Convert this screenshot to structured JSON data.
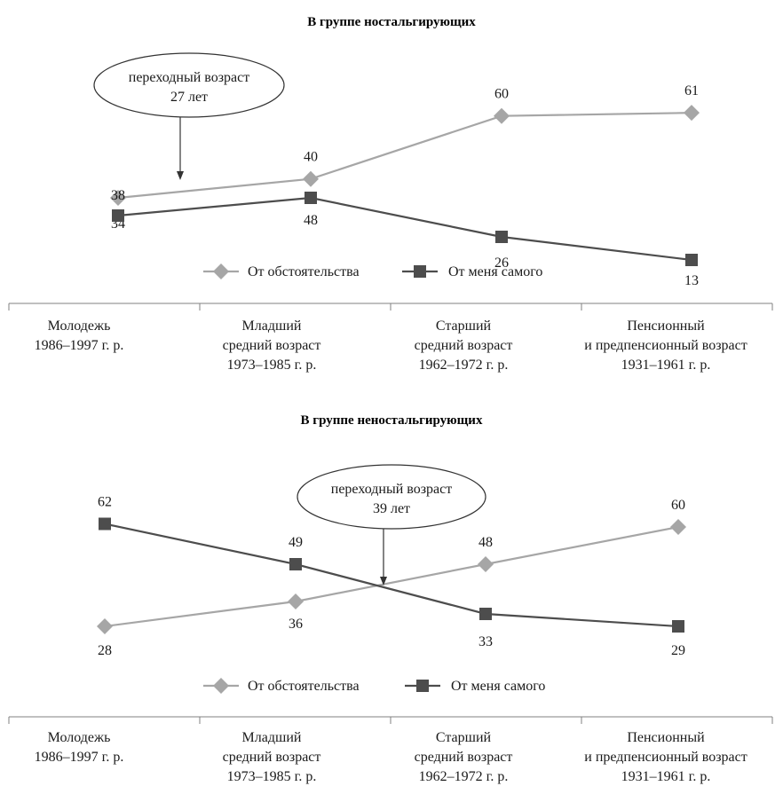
{
  "colors": {
    "circumstances": "#a6a6a6",
    "self": "#4d4d4d",
    "axis": "#808080",
    "text": "#1a1a1a"
  },
  "categories": [
    [
      "Молодежь",
      "1986–1997 г. р."
    ],
    [
      "Младший",
      "средний возраст",
      "1973–1985 г. р."
    ],
    [
      "Старший",
      "средний возраст",
      "1962–1972 г. р."
    ],
    [
      "Пенсионный",
      "и предпенсионный возраст",
      "1931–1961 г. р."
    ]
  ],
  "chart_data": [
    {
      "type": "line",
      "title": "В группе ностальгирующих",
      "categories": [
        "Молодежь 1986–1997 г. р.",
        "Младший средний возраст 1973–1985 г. р.",
        "Старший средний возраст 1962–1972 г. р.",
        "Пенсионный и предпенсионный возраст 1931–1961 г. р."
      ],
      "series": [
        {
          "name": "От обстоятельства",
          "marker": "diamond",
          "values": [
            34,
            40,
            60,
            61
          ]
        },
        {
          "name": "От меня самого",
          "marker": "square",
          "values": [
            38,
            48,
            26,
            13
          ]
        }
      ],
      "annotation": {
        "lines": [
          "переходный возраст",
          "27 лет"
        ],
        "x_category_position": 0.35
      },
      "legend": "bottom"
    },
    {
      "type": "line",
      "title": "В группе неностальгирующих",
      "categories": [
        "Молодежь 1986–1997 г. р.",
        "Младший средний возраст 1973–1985 г. р.",
        "Старший средний возраст 1962–1972 г. р.",
        "Пенсионный и предпенсионный возраст 1931–1961 г. р."
      ],
      "series": [
        {
          "name": "От обстоятельства",
          "marker": "diamond",
          "values": [
            28,
            36,
            48,
            60
          ]
        },
        {
          "name": "От меня самого",
          "marker": "square",
          "values": [
            62,
            49,
            33,
            29
          ]
        }
      ],
      "annotation": {
        "lines": [
          "переходный возраст",
          "39 лет"
        ],
        "x_category_position": 1.5
      },
      "legend": "bottom"
    }
  ]
}
